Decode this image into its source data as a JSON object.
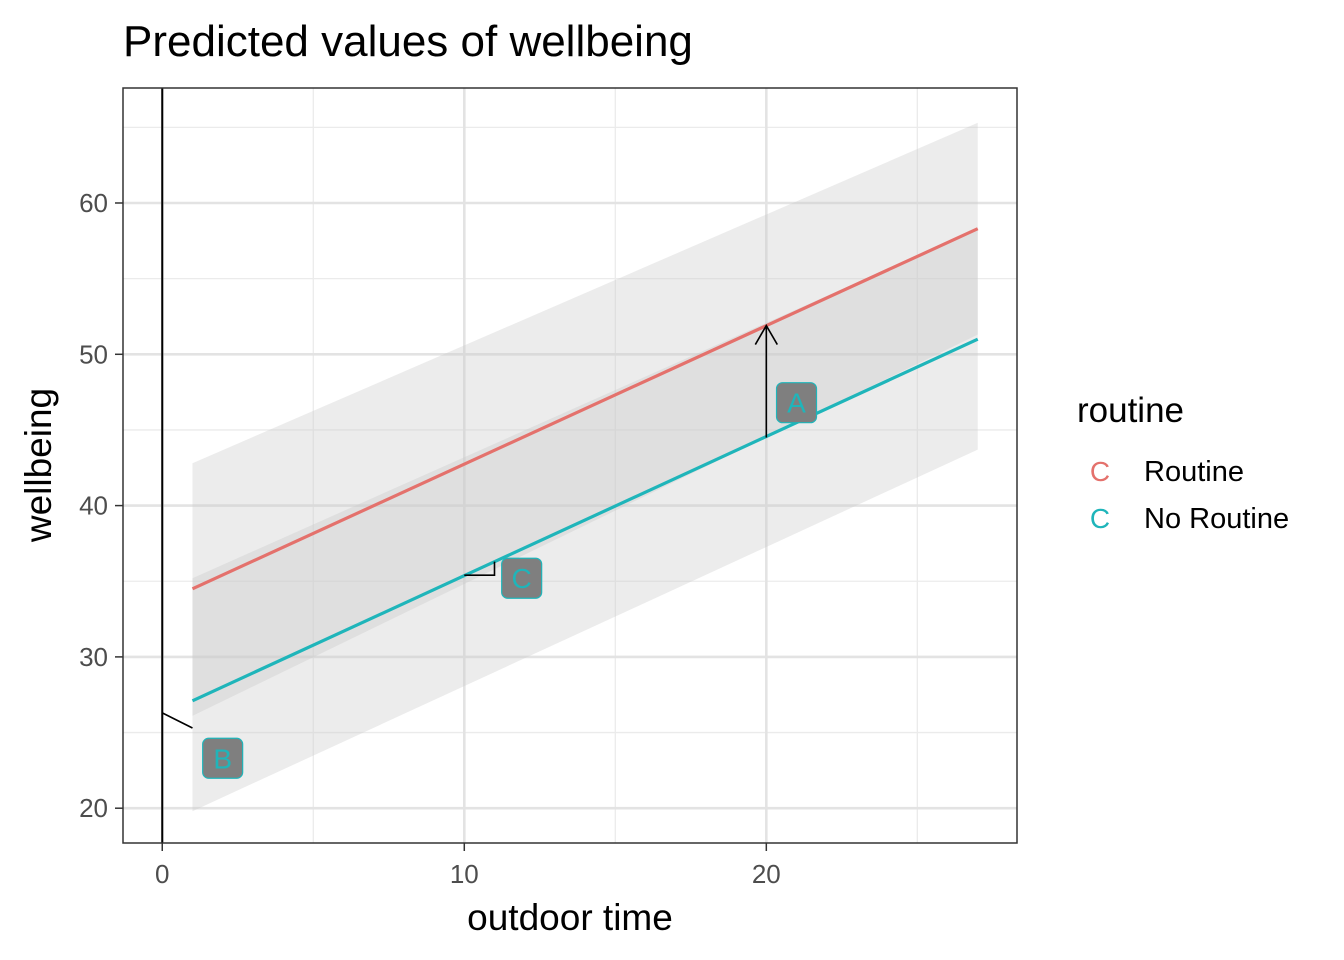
{
  "chart_data": {
    "type": "line",
    "title": "Predicted values of wellbeing",
    "xlabel": "outdoor time",
    "ylabel": "wellbeing",
    "xlim": [
      -1.3,
      28.3
    ],
    "ylim": [
      17.7,
      67.6
    ],
    "x_ticks": [
      0,
      10,
      20
    ],
    "y_ticks": [
      20,
      30,
      40,
      50,
      60
    ],
    "grid": true,
    "legend": {
      "title": "routine",
      "placement": "right",
      "key_glyph": "C",
      "entries": [
        "Routine",
        "No Routine"
      ]
    },
    "series": [
      {
        "name": "Routine",
        "color": "#E4716C",
        "x": [
          1,
          27
        ],
        "y": [
          34.5,
          58.3
        ],
        "ci_lower": [
          26.1,
          51.3
        ],
        "ci_upper": [
          42.8,
          65.3
        ]
      },
      {
        "name": "No Routine",
        "color": "#1FB5BA",
        "x": [
          1,
          27
        ],
        "y": [
          27.1,
          51.0
        ],
        "ci_lower": [
          19.8,
          43.7
        ],
        "ci_upper": [
          35.2,
          58.3
        ]
      }
    ],
    "ribbon_color": "#c8c8c8",
    "reference_lines": [
      {
        "axis": "x",
        "value": 0
      }
    ],
    "annotations": [
      {
        "label": "A",
        "x": 21.0,
        "y": 46.8
      },
      {
        "label": "B",
        "x": 2.0,
        "y": 23.3
      },
      {
        "label": "C",
        "x": 11.9,
        "y": 35.2
      }
    ],
    "segments": [
      {
        "kind": "arrow",
        "x1": 20,
        "y1": 44.5,
        "x2": 20,
        "y2": 51.9
      },
      {
        "kind": "line",
        "x1": 0,
        "y1": 26.3,
        "x2": 1.0,
        "y2": 25.3
      },
      {
        "kind": "elbow",
        "x1": 10,
        "y1": 35.4,
        "x2": 11.0,
        "y2": 36.3
      }
    ],
    "annotation_fill": "#7f7f7f",
    "annotation_text_color": "#1FB5BA"
  }
}
